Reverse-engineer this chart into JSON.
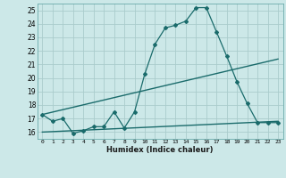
{
  "xlabel": "Humidex (Indice chaleur)",
  "ylabel": "",
  "background_color": "#cce8e8",
  "grid_color": "#aacccc",
  "line_color": "#1a6b6b",
  "xlim": [
    -0.5,
    23.5
  ],
  "ylim": [
    15.5,
    25.5
  ],
  "xticks": [
    0,
    1,
    2,
    3,
    4,
    5,
    6,
    7,
    8,
    9,
    10,
    11,
    12,
    13,
    14,
    15,
    16,
    17,
    18,
    19,
    20,
    21,
    22,
    23
  ],
  "yticks": [
    16,
    17,
    18,
    19,
    20,
    21,
    22,
    23,
    24,
    25
  ],
  "series1_x": [
    0,
    1,
    2,
    3,
    4,
    5,
    6,
    7,
    8,
    9,
    10,
    11,
    12,
    13,
    14,
    15,
    16,
    17,
    18,
    19,
    20,
    21,
    22,
    23
  ],
  "series1_y": [
    17.3,
    16.8,
    17.0,
    15.9,
    16.1,
    16.4,
    16.4,
    17.5,
    16.3,
    17.5,
    20.3,
    22.5,
    23.7,
    23.9,
    24.2,
    25.2,
    25.2,
    23.4,
    21.6,
    19.7,
    18.1,
    16.7,
    16.7,
    16.7
  ],
  "series2_x": [
    0,
    23
  ],
  "series2_y": [
    17.3,
    21.4
  ],
  "series3_x": [
    0,
    23
  ],
  "series3_y": [
    16.0,
    16.8
  ]
}
